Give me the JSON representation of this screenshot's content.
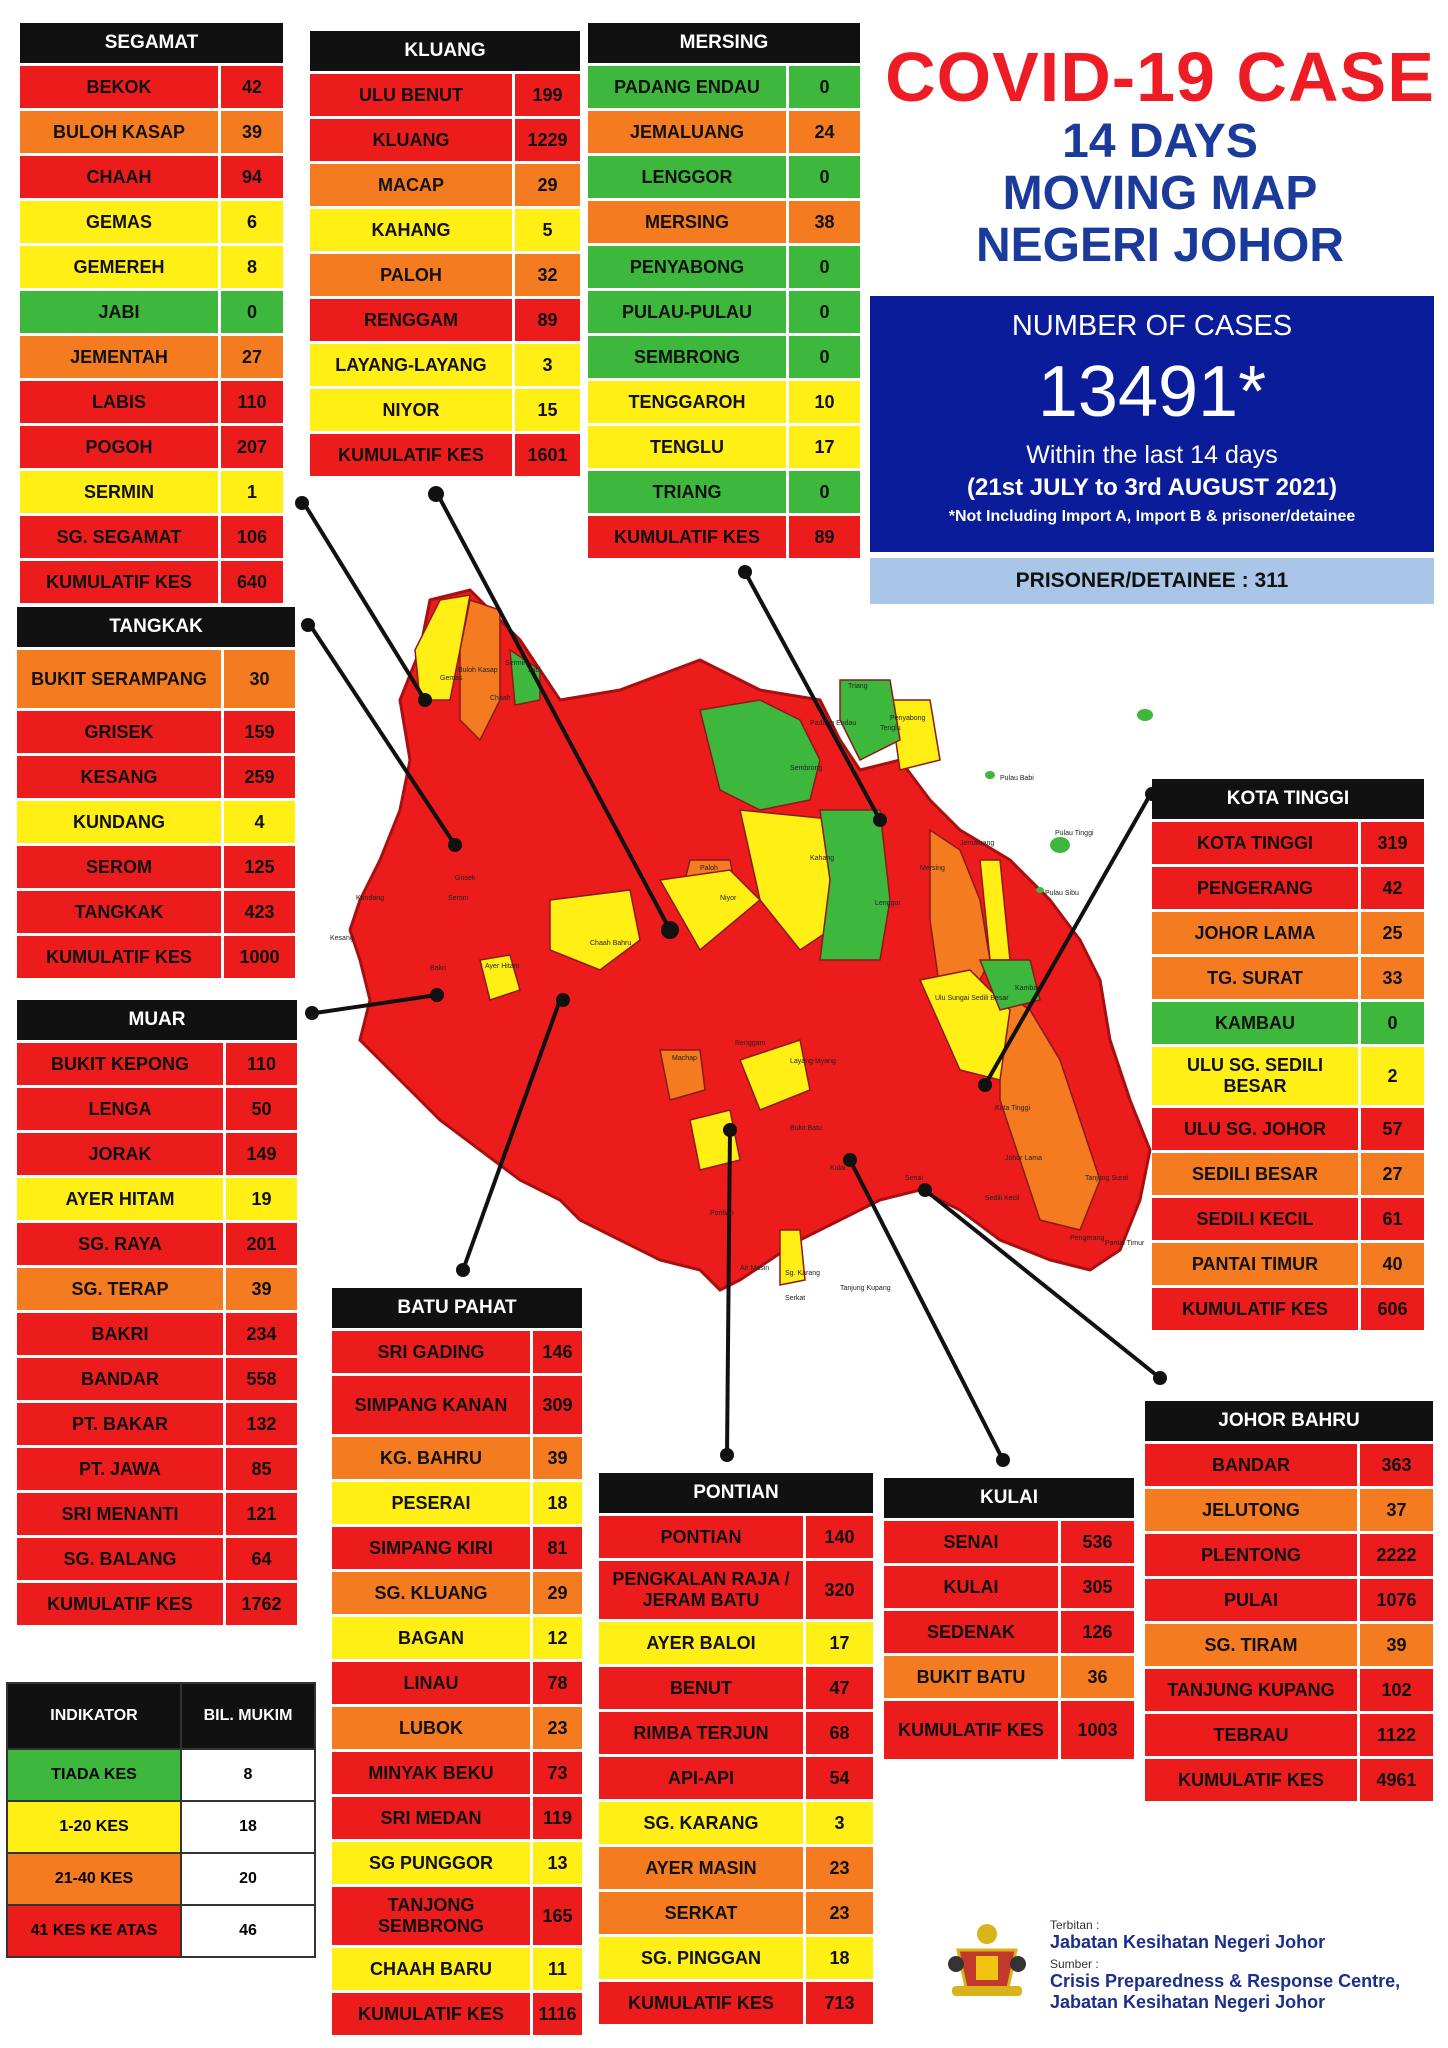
{
  "title": {
    "line1": "COVID-19 CASE",
    "line2": "14 DAYS",
    "line3": "MOVING MAP",
    "line4": "NEGERI JOHOR"
  },
  "summary": {
    "heading": "NUMBER OF CASES",
    "total": "13491*",
    "period": "Within the last 14 days",
    "range": "(21st JULY to 3rd AUGUST 2021)",
    "note": "*Not Including Import A, Import B & prisoner/detainee",
    "prisoner": "PRISONER/DETAINEE : 311"
  },
  "colors": {
    "red": "#ec1c1c",
    "orange": "#f47b20",
    "yellow": "#ffef14",
    "green": "#3db83d"
  },
  "legend": {
    "header": [
      "INDIKATOR",
      "BIL. MUKIM"
    ],
    "rows": [
      {
        "label": "TIADA KES",
        "value": "8",
        "cls": "g"
      },
      {
        "label": "1-20 KES",
        "value": "18",
        "cls": "y"
      },
      {
        "label": "21-40 KES",
        "value": "20",
        "cls": "o"
      },
      {
        "label": "41 KES KE ATAS",
        "value": "46",
        "cls": "r"
      }
    ]
  },
  "districts": [
    {
      "id": "segamat",
      "name": "SEGAMAT",
      "rows": [
        [
          "BEKOK",
          "42",
          "r"
        ],
        [
          "BULOH KASAP",
          "39",
          "o"
        ],
        [
          "CHAAH",
          "94",
          "r"
        ],
        [
          "GEMAS",
          "6",
          "y"
        ],
        [
          "GEMEREH",
          "8",
          "y"
        ],
        [
          "JABI",
          "0",
          "g"
        ],
        [
          "JEMENTAH",
          "27",
          "o"
        ],
        [
          "LABIS",
          "110",
          "r"
        ],
        [
          "POGOH",
          "207",
          "r"
        ],
        [
          "SERMIN",
          "1",
          "y"
        ],
        [
          "SG. SEGAMAT",
          "106",
          "r"
        ],
        [
          "KUMULATIF KES",
          "640",
          "r"
        ]
      ]
    },
    {
      "id": "kluang",
      "name": "KLUANG",
      "rows": [
        [
          "ULU BENUT",
          "199",
          "r"
        ],
        [
          "KLUANG",
          "1229",
          "r"
        ],
        [
          "MACAP",
          "29",
          "o"
        ],
        [
          "KAHANG",
          "5",
          "y"
        ],
        [
          "PALOH",
          "32",
          "o"
        ],
        [
          "RENGGAM",
          "89",
          "r"
        ],
        [
          "LAYANG-LAYANG",
          "3",
          "y"
        ],
        [
          "NIYOR",
          "15",
          "y"
        ],
        [
          "KUMULATIF KES",
          "1601",
          "r"
        ]
      ]
    },
    {
      "id": "mersing",
      "name": "MERSING",
      "rows": [
        [
          "PADANG ENDAU",
          "0",
          "g"
        ],
        [
          "JEMALUANG",
          "24",
          "o"
        ],
        [
          "LENGGOR",
          "0",
          "g"
        ],
        [
          "MERSING",
          "38",
          "o"
        ],
        [
          "PENYABONG",
          "0",
          "g"
        ],
        [
          "PULAU-PULAU",
          "0",
          "g"
        ],
        [
          "SEMBRONG",
          "0",
          "g"
        ],
        [
          "TENGGAROH",
          "10",
          "y"
        ],
        [
          "TENGLU",
          "17",
          "y"
        ],
        [
          "TRIANG",
          "0",
          "g"
        ],
        [
          "KUMULATIF KES",
          "89",
          "r"
        ]
      ]
    },
    {
      "id": "tangkak",
      "name": "TANGKAK",
      "rows": [
        [
          "BUKIT SERAMPANG",
          "30",
          "o",
          "tall"
        ],
        [
          "GRISEK",
          "159",
          "r"
        ],
        [
          "KESANG",
          "259",
          "r"
        ],
        [
          "KUNDANG",
          "4",
          "y"
        ],
        [
          "SEROM",
          "125",
          "r"
        ],
        [
          "TANGKAK",
          "423",
          "r"
        ],
        [
          "KUMULATIF KES",
          "1000",
          "r"
        ]
      ]
    },
    {
      "id": "muar",
      "name": "MUAR",
      "rows": [
        [
          "BUKIT KEPONG",
          "110",
          "r"
        ],
        [
          "LENGA",
          "50",
          "r"
        ],
        [
          "JORAK",
          "149",
          "r"
        ],
        [
          "AYER HITAM",
          "19",
          "y"
        ],
        [
          "SG. RAYA",
          "201",
          "r"
        ],
        [
          "SG. TERAP",
          "39",
          "o"
        ],
        [
          "BAKRI",
          "234",
          "r"
        ],
        [
          "BANDAR",
          "558",
          "r"
        ],
        [
          "PT. BAKAR",
          "132",
          "r"
        ],
        [
          "PT. JAWA",
          "85",
          "r"
        ],
        [
          "SRI MENANTI",
          "121",
          "r"
        ],
        [
          "SG. BALANG",
          "64",
          "r"
        ],
        [
          "KUMULATIF KES",
          "1762",
          "r"
        ]
      ]
    },
    {
      "id": "kotatinggi",
      "name": "KOTA TINGGI",
      "rows": [
        [
          "KOTA TINGGI",
          "319",
          "r"
        ],
        [
          "PENGERANG",
          "42",
          "r"
        ],
        [
          "JOHOR LAMA",
          "25",
          "o"
        ],
        [
          "TG. SURAT",
          "33",
          "o"
        ],
        [
          "KAMBAU",
          "0",
          "g"
        ],
        [
          "ULU SG. SEDILI BESAR",
          "2",
          "y",
          "tall"
        ],
        [
          "ULU  SG. JOHOR",
          "57",
          "r"
        ],
        [
          "SEDILI BESAR",
          "27",
          "o"
        ],
        [
          "SEDILI KECIL",
          "61",
          "r"
        ],
        [
          "PANTAI TIMUR",
          "40",
          "o"
        ],
        [
          "KUMULATIF KES",
          "606",
          "r"
        ]
      ]
    },
    {
      "id": "batupahat",
      "name": "BATU PAHAT",
      "rows": [
        [
          "SRI GADING",
          "146",
          "r"
        ],
        [
          "SIMPANG KANAN",
          "309",
          "r",
          "tall"
        ],
        [
          "KG. BAHRU",
          "39",
          "o"
        ],
        [
          "PESERAI",
          "18",
          "y"
        ],
        [
          "SIMPANG KIRI",
          "81",
          "r"
        ],
        [
          "SG. KLUANG",
          "29",
          "o"
        ],
        [
          "BAGAN",
          "12",
          "y"
        ],
        [
          "LINAU",
          "78",
          "r"
        ],
        [
          "LUBOK",
          "23",
          "o"
        ],
        [
          "MINYAK BEKU",
          "73",
          "r"
        ],
        [
          "SRI MEDAN",
          "119",
          "r"
        ],
        [
          "SG PUNGGOR",
          "13",
          "y"
        ],
        [
          "TANJONG SEMBRONG",
          "165",
          "r",
          "tall"
        ],
        [
          "CHAAH BARU",
          "11",
          "y"
        ],
        [
          "KUMULATIF KES",
          "1116",
          "r"
        ]
      ]
    },
    {
      "id": "pontian",
      "name": "PONTIAN",
      "rows": [
        [
          "PONTIAN",
          "140",
          "r"
        ],
        [
          "PENGKALAN RAJA / JERAM BATU",
          "320",
          "r",
          "tall"
        ],
        [
          "AYER BALOI",
          "17",
          "y"
        ],
        [
          "BENUT",
          "47",
          "r"
        ],
        [
          "RIMBA TERJUN",
          "68",
          "r"
        ],
        [
          "API-API",
          "54",
          "r"
        ],
        [
          "SG. KARANG",
          "3",
          "y"
        ],
        [
          "AYER MASIN",
          "23",
          "o"
        ],
        [
          "SERKAT",
          "23",
          "o"
        ],
        [
          "SG. PINGGAN",
          "18",
          "y"
        ],
        [
          "KUMULATIF KES",
          "713",
          "r"
        ]
      ]
    },
    {
      "id": "kulai",
      "name": "KULAI",
      "rows": [
        [
          "SENAI",
          "536",
          "r"
        ],
        [
          "KULAI",
          "305",
          "r"
        ],
        [
          "SEDENAK",
          "126",
          "r"
        ],
        [
          "BUKIT BATU",
          "36",
          "o"
        ],
        [
          "KUMULATIF KES",
          "1003",
          "r",
          "tall"
        ]
      ]
    },
    {
      "id": "johorbahru",
      "name": "JOHOR BAHRU",
      "rows": [
        [
          "BANDAR",
          "363",
          "r"
        ],
        [
          "JELUTONG",
          "37",
          "o"
        ],
        [
          "PLENTONG",
          "2222",
          "r"
        ],
        [
          "PULAI",
          "1076",
          "r"
        ],
        [
          "SG. TIRAM",
          "39",
          "o"
        ],
        [
          "TANJUNG KUPANG",
          "102",
          "r"
        ],
        [
          "TEBRAU",
          "1122",
          "r"
        ],
        [
          "KUMULATIF KES",
          "4961",
          "r"
        ]
      ]
    }
  ],
  "map_labels": [
    "Gemas",
    "Jabi",
    "Sermin",
    "Buloh Kasap",
    "Chaah",
    "Padang Endau",
    "Triang",
    "Penyabong",
    "Tenglu",
    "Sembrong",
    "Kahang",
    "Niyor",
    "Paloh",
    "Lenggor",
    "Mersing",
    "Jemaluang",
    "Pulau Babi",
    "Pulau Tinggi",
    "Pulau Sibu",
    "Grisek",
    "Serom",
    "Kundang",
    "Kesang",
    "Bakri",
    "Ayer Hitam",
    "Chaah Bahru",
    "Machap",
    "Layang-layang",
    "Renggam",
    "Ulu Sungai Sedili Besar",
    "Kambau",
    "Kota Tinggi",
    "Johor Lama",
    "Tanjung Surat",
    "Pengerang",
    "Pantai Timur",
    "Senai",
    "Kulai",
    "Pontian",
    "Air Masin",
    "Sg. Karang",
    "Serkat",
    "Tanjung Kupang",
    "Bukit Batu",
    "Sedili Kecil"
  ],
  "footer": {
    "published_label": "Terbitan :",
    "publisher": "Jabatan Kesihatan Negeri Johor",
    "source_label": "Sumber :",
    "source1": "Crisis Preparedness & Response Centre,",
    "source2": "Jabatan Kesihatan Negeri Johor"
  }
}
